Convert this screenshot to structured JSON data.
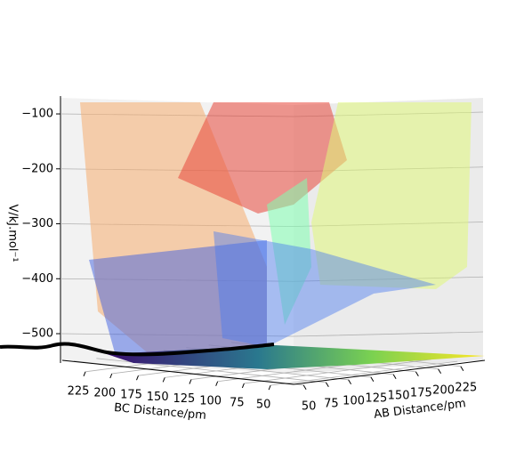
{
  "chart_data": {
    "type": "surface3d",
    "zlabel": "V/kJ.mol⁻¹",
    "xlabel": "BC Distance/pm",
    "ylabel": "AB Distance/pm",
    "zlim": [
      -550,
      -75
    ],
    "zticks": [
      {
        "value": -100,
        "label": "−100"
      },
      {
        "value": -200,
        "label": "−200"
      },
      {
        "value": -300,
        "label": "−300"
      },
      {
        "value": -400,
        "label": "−400"
      },
      {
        "value": -500,
        "label": "−500"
      }
    ],
    "xlim": [
      40,
      240
    ],
    "xticks": [
      225,
      200,
      175,
      150,
      125,
      100,
      75,
      50
    ],
    "ylim": [
      40,
      240
    ],
    "yticks": [
      50,
      75,
      100,
      125,
      150,
      175,
      200,
      225
    ],
    "grid": true
  }
}
